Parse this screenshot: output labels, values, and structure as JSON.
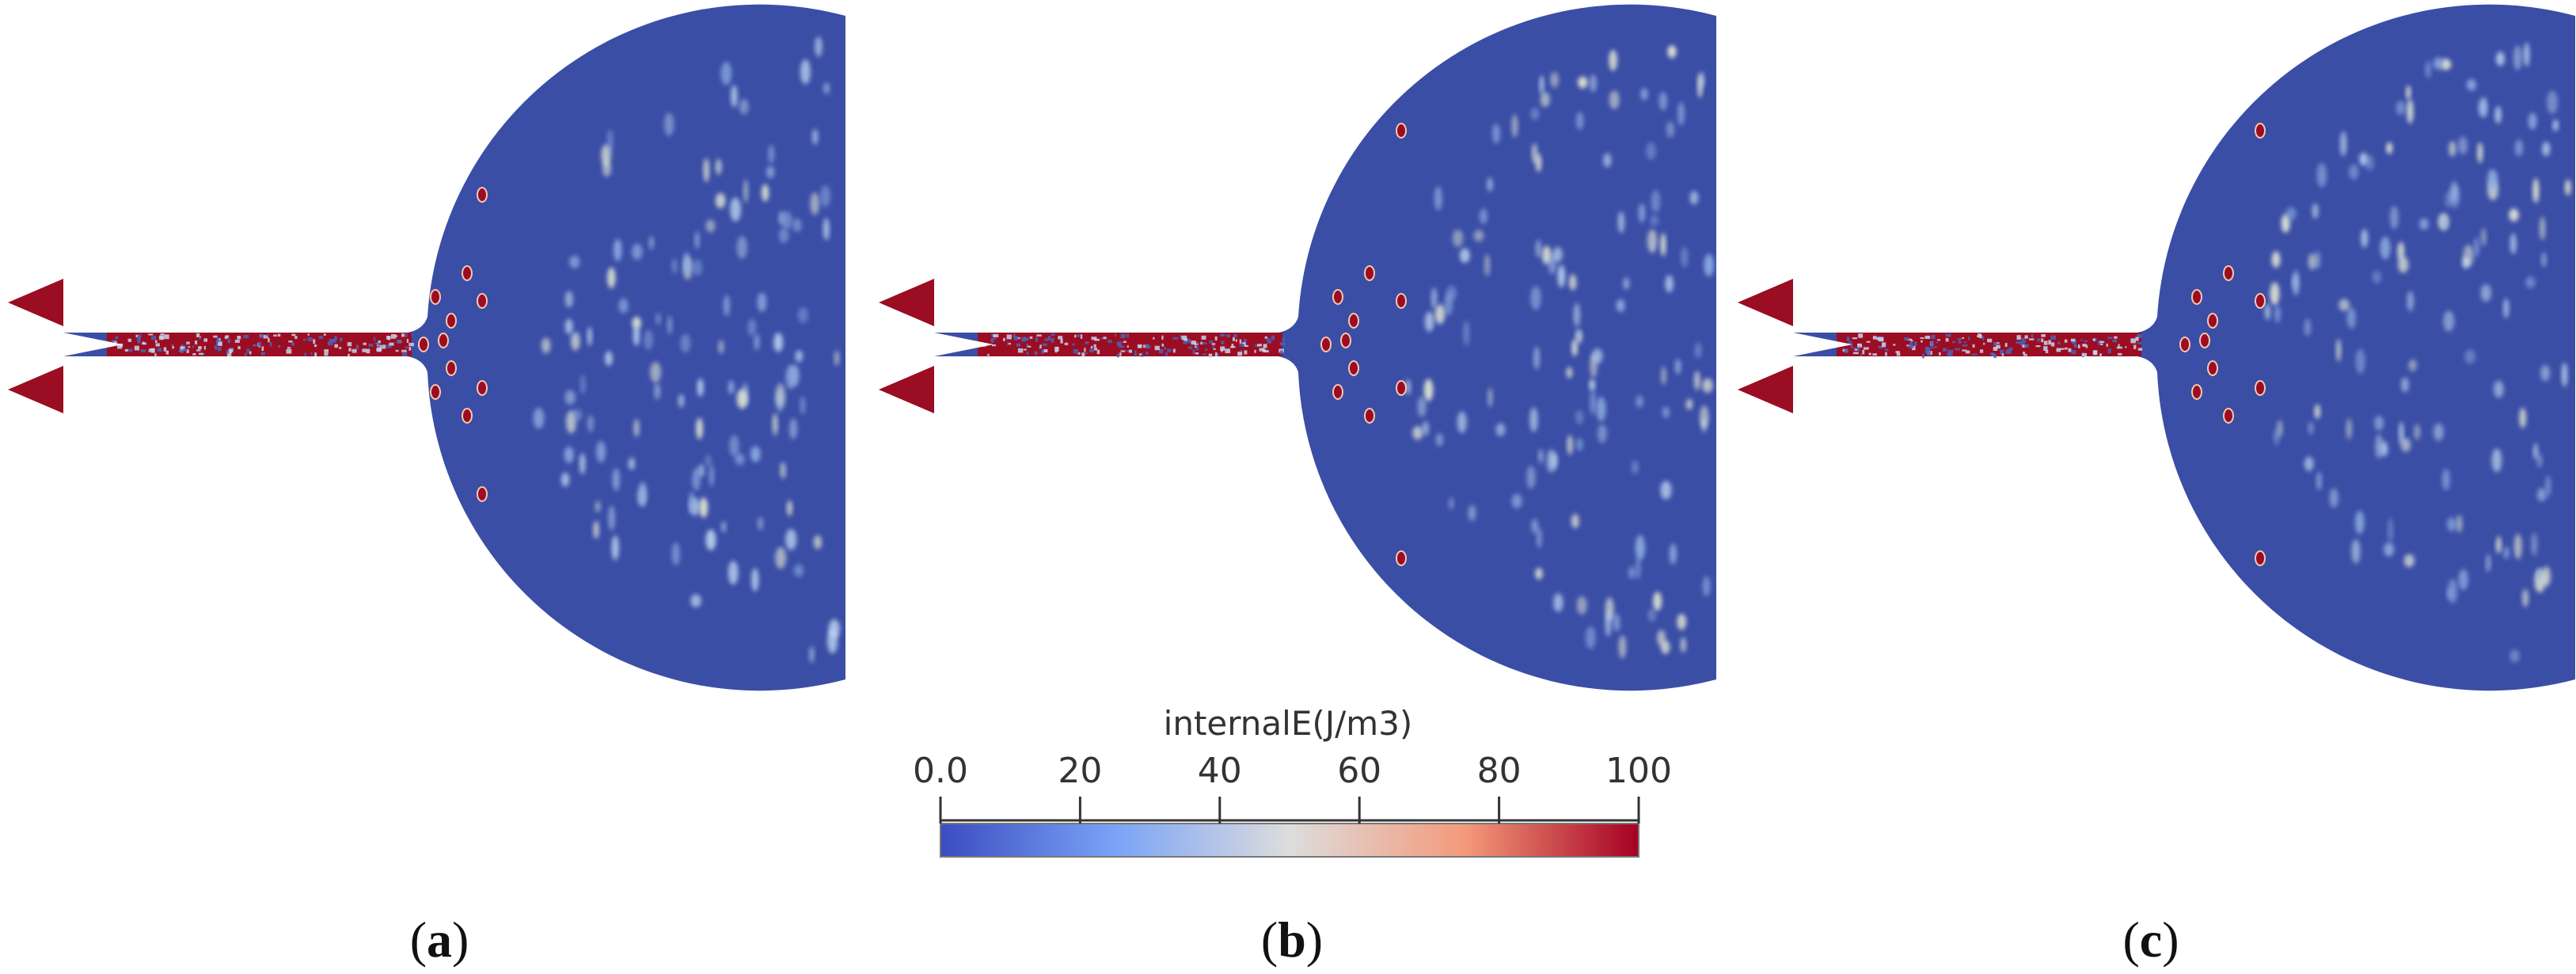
{
  "figure": {
    "panels": [
      {
        "id": "a",
        "label_open": "(",
        "letter": "a",
        "label_close": ")"
      },
      {
        "id": "b",
        "label_open": "(",
        "letter": "b",
        "label_close": ")"
      },
      {
        "id": "c",
        "label_open": "(",
        "letter": "c",
        "label_close": ")"
      }
    ],
    "colorbar": {
      "title": "internalE(J/m3)",
      "ticks": [
        "0.0",
        "20",
        "40",
        "60",
        "80",
        "100"
      ],
      "range": [
        0,
        100
      ],
      "colormap": "cool-to-warm",
      "colors": [
        "#3b4cc0",
        "#aac7fd",
        "#dddddd",
        "#f6a385",
        "#b40426",
        "#a50021"
      ]
    },
    "colors": {
      "domain_blue": "#3b4ea6",
      "high_energy": "#9b0d22",
      "hot_spot": "#ddeaf5"
    }
  }
}
